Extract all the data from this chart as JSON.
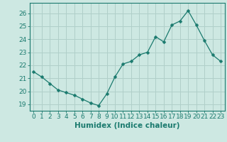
{
  "x": [
    0,
    1,
    2,
    3,
    4,
    5,
    6,
    7,
    8,
    9,
    10,
    11,
    12,
    13,
    14,
    15,
    16,
    17,
    18,
    19,
    20,
    21,
    22,
    23
  ],
  "y": [
    21.5,
    21.1,
    20.6,
    20.1,
    19.9,
    19.7,
    19.4,
    19.1,
    18.9,
    19.8,
    21.1,
    22.1,
    22.3,
    22.8,
    23.0,
    24.2,
    23.8,
    25.1,
    25.4,
    26.2,
    25.1,
    23.9,
    22.8,
    22.3
  ],
  "line_color": "#1a7a6e",
  "marker": "D",
  "marker_size": 2.5,
  "bg_color": "#cde8e2",
  "grid_color": "#b0cfc9",
  "xlabel": "Humidex (Indice chaleur)",
  "ylim": [
    18.5,
    26.8
  ],
  "xlim": [
    -0.5,
    23.5
  ],
  "yticks": [
    19,
    20,
    21,
    22,
    23,
    24,
    25,
    26
  ],
  "xticks": [
    0,
    1,
    2,
    3,
    4,
    5,
    6,
    7,
    8,
    9,
    10,
    11,
    12,
    13,
    14,
    15,
    16,
    17,
    18,
    19,
    20,
    21,
    22,
    23
  ],
  "tick_color": "#1a7a6e",
  "label_fontsize": 6.5,
  "xlabel_fontsize": 7.5
}
